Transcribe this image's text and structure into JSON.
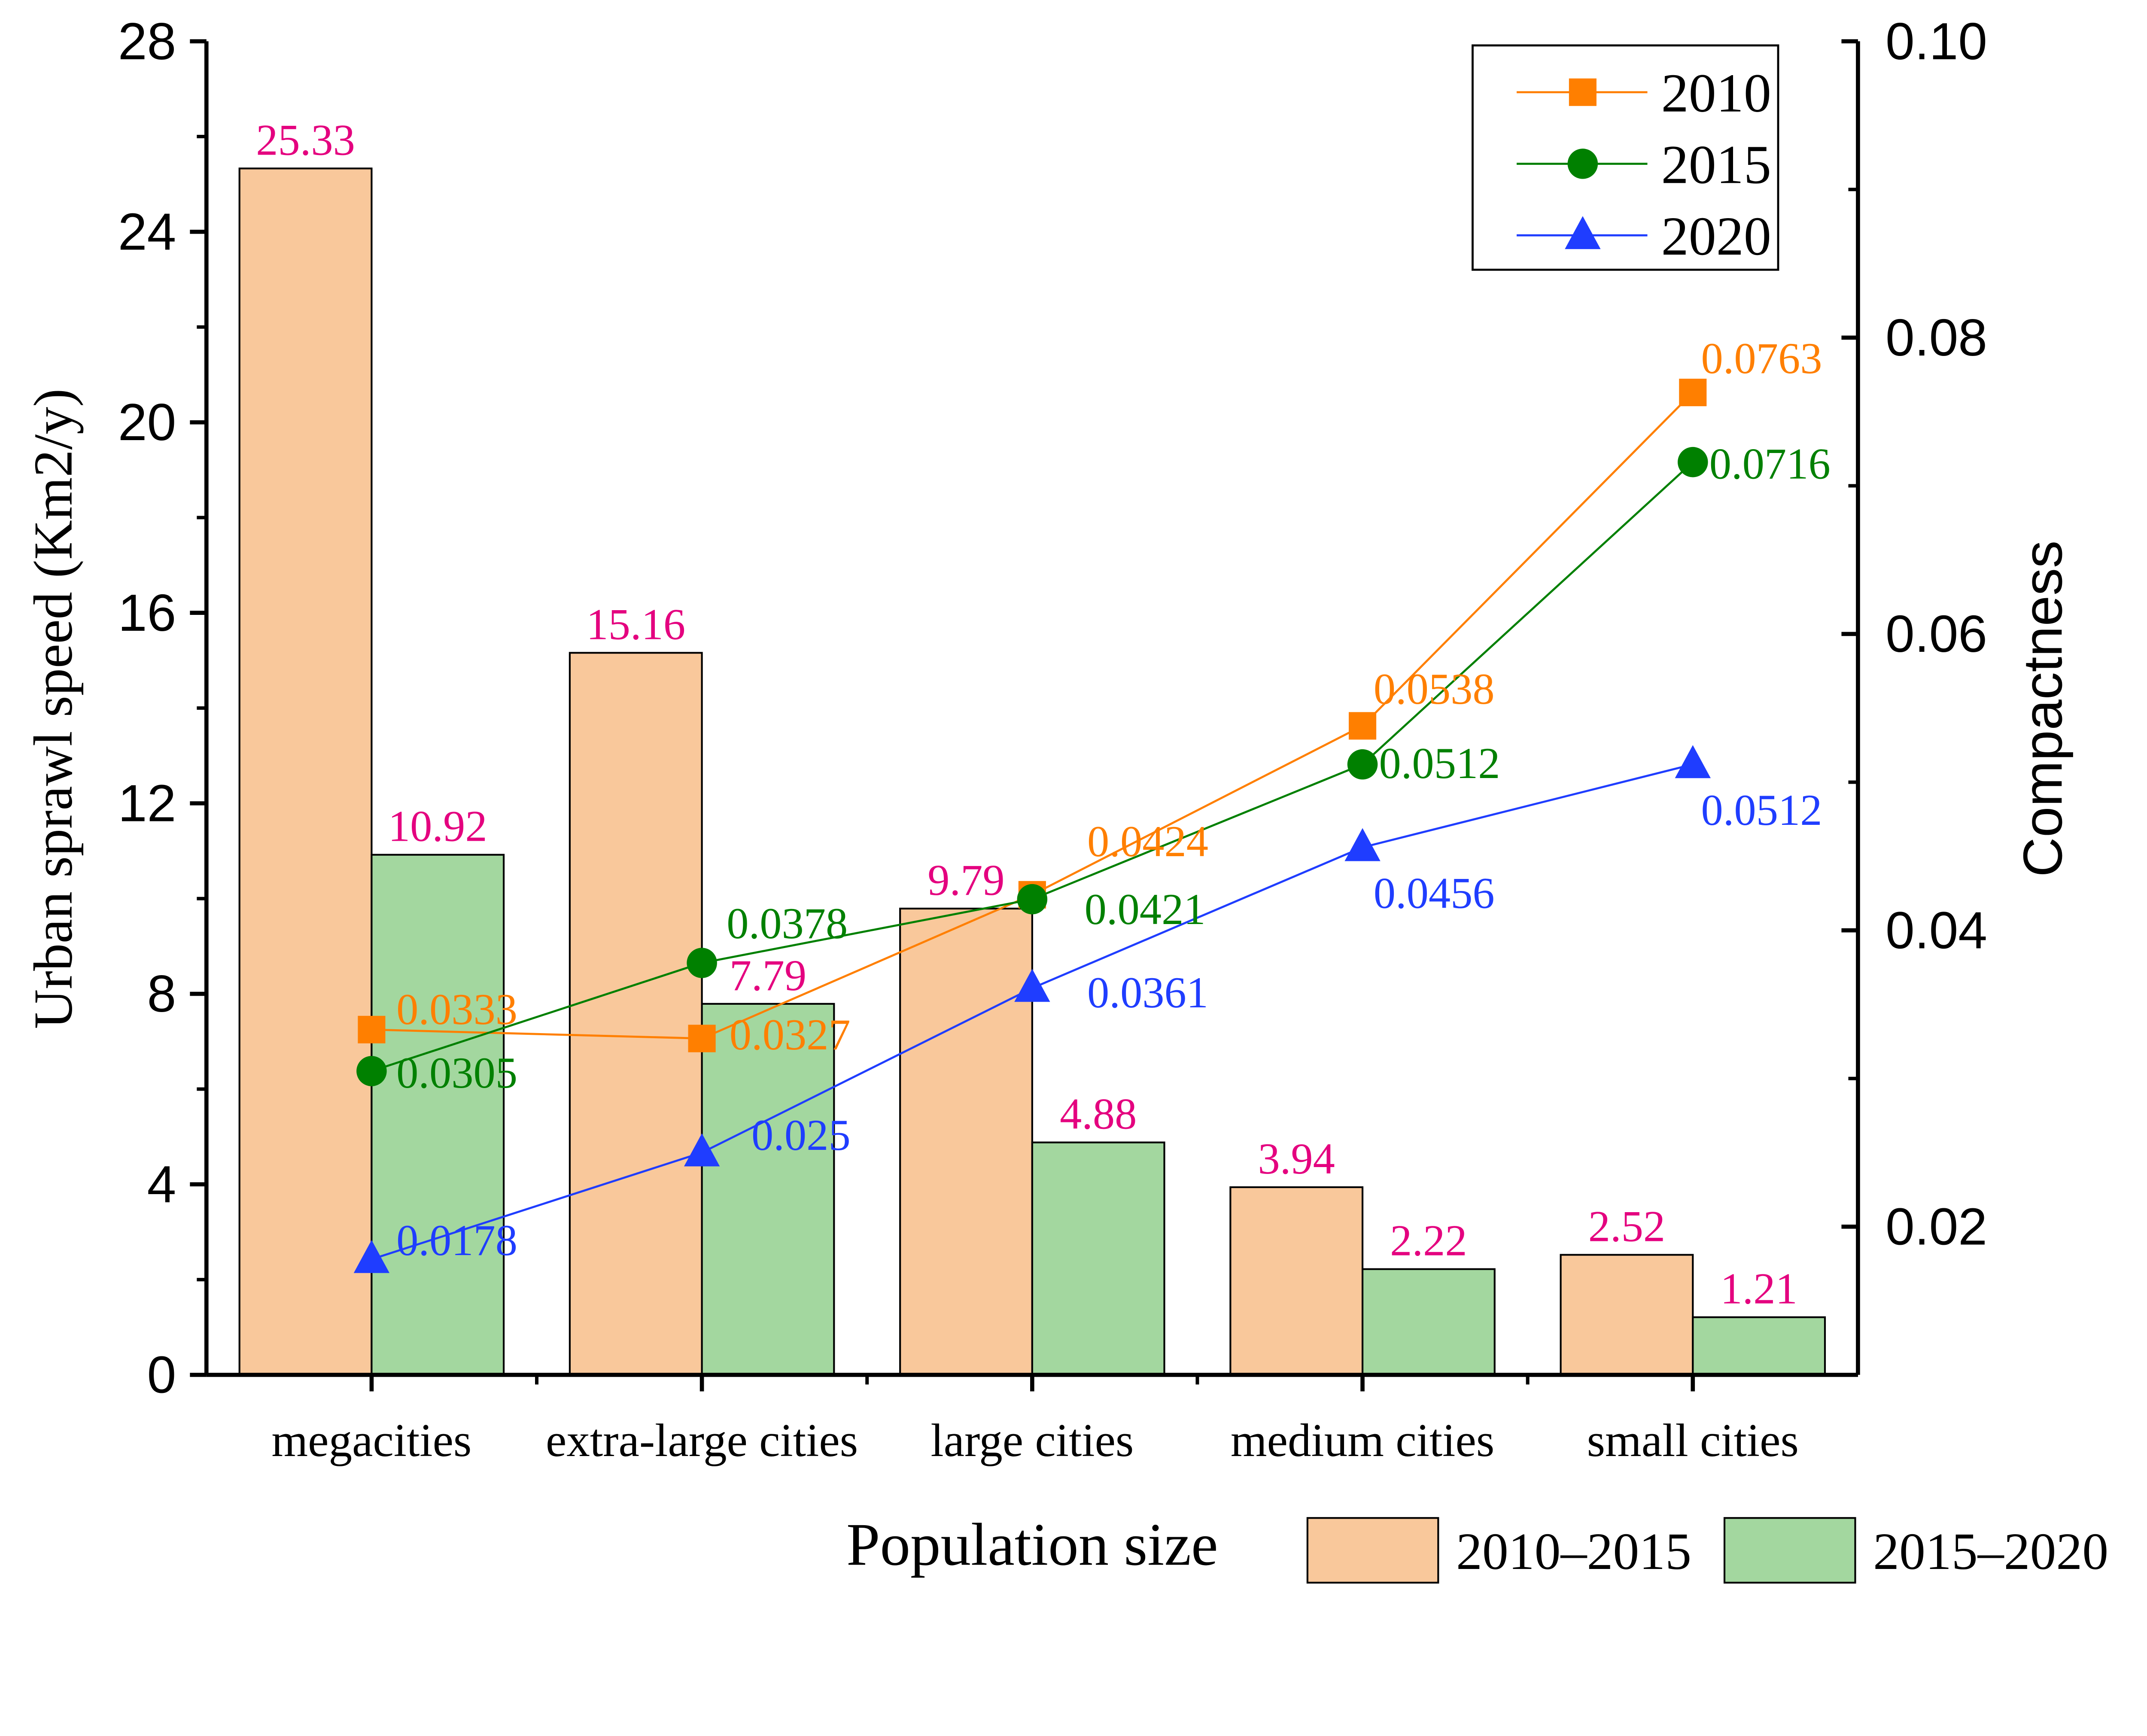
{
  "chart_data": {
    "type": "bar+line",
    "categories": [
      "megacities",
      "extra-large cities",
      "large cities",
      "medium cities",
      "small cities"
    ],
    "xlabel": "Population size",
    "ylabel": "Urban sprawl speed (Km2/y)",
    "ylabel_right": "Compactness",
    "ylim": [
      0,
      28
    ],
    "ylim_right": [
      0.01,
      0.1
    ],
    "yticks": [
      "0",
      "4",
      "8",
      "12",
      "16",
      "20",
      "24",
      "28"
    ],
    "yticks_right": [
      "0.02",
      "0.04",
      "0.06",
      "0.08",
      "0.10"
    ],
    "bar_series": [
      {
        "name": "2010–2015",
        "color": "#f9c89b",
        "values": [
          25.33,
          15.16,
          9.79,
          3.94,
          2.52
        ],
        "labels": [
          "25.33",
          "15.16",
          "9.79",
          "3.94",
          "2.52"
        ]
      },
      {
        "name": "2015–2020",
        "color": "#a3d79f",
        "values": [
          10.92,
          7.79,
          4.88,
          2.22,
          1.21
        ],
        "labels": [
          "10.92",
          "7.79",
          "4.88",
          "2.22",
          "1.21"
        ]
      }
    ],
    "bar_label_color": "#e4007f",
    "line_series": [
      {
        "name": "2010",
        "marker": "square",
        "color": "#ff7f00",
        "values": [
          0.0333,
          0.0327,
          0.0424,
          0.0538,
          0.0763
        ],
        "labels": [
          "0.0333",
          "0.0327",
          "0.0424",
          "0.0538",
          "0.0763"
        ]
      },
      {
        "name": "2015",
        "marker": "circle",
        "color": "#008000",
        "values": [
          0.0305,
          0.0378,
          0.0421,
          0.0512,
          0.0716
        ],
        "labels": [
          "0.0305",
          "0.0378",
          "0.0421",
          "0.0512",
          "0.0716"
        ]
      },
      {
        "name": "2020",
        "marker": "triangle",
        "color": "#1f3dff",
        "values": [
          0.0178,
          0.025,
          0.0361,
          0.0456,
          0.0512
        ],
        "labels": [
          "0.0178",
          "0.025",
          "0.0361",
          "0.0456",
          "0.0512"
        ]
      }
    ],
    "legend_lines": "top-right",
    "legend_bars": "bottom-right"
  }
}
